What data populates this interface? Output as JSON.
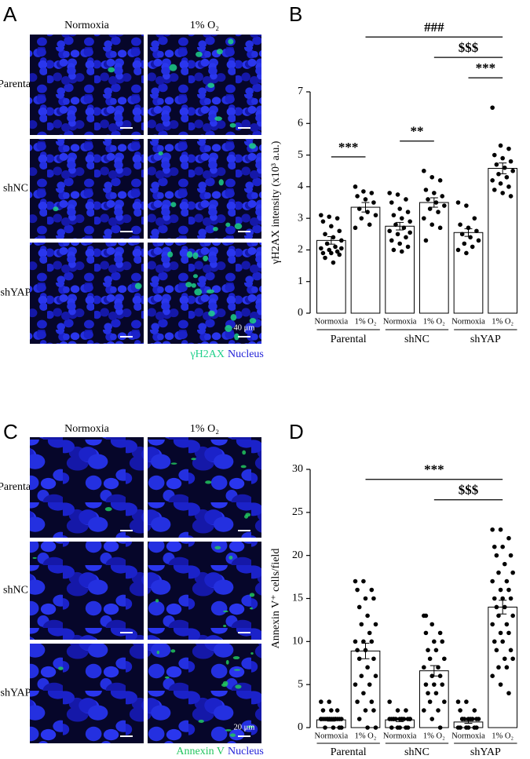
{
  "figure": {
    "panels": [
      {
        "label": "A",
        "columns": [
          "Normoxia",
          "1% O₂"
        ],
        "rows": [
          "Parental",
          "shNC",
          "shYAP"
        ],
        "scale_bar": "40 μm",
        "stain": {
          "text": "γH2AX",
          "color": "#1fd08a"
        },
        "counterstain": {
          "text": "Nucleus",
          "color": "#2323d8"
        }
      },
      {
        "label": "C",
        "columns": [
          "Normoxia",
          "1% O₂"
        ],
        "rows": [
          "Parental",
          "shNC",
          "shYAP"
        ],
        "scale_bar": "20 μm",
        "stain": {
          "text": "Annexin V",
          "color": "#22c55e"
        },
        "counterstain": {
          "text": "Nucleus",
          "color": "#2323d8"
        }
      }
    ]
  },
  "chart_data": [
    {
      "type": "bar",
      "panel_label": "B",
      "ylabel": "γH2AX intensity (x10³ a.u.)",
      "categories": [
        "Normoxia",
        "1% O₂",
        "Normoxia",
        "1% O₂",
        "Normoxia",
        "1% O₂"
      ],
      "group_labels": [
        "Parental",
        "shNC",
        "shYAP"
      ],
      "values": [
        2.3,
        3.35,
        2.75,
        3.5,
        2.55,
        4.58
      ],
      "errors": [
        0.12,
        0.15,
        0.12,
        0.15,
        0.12,
        0.17
      ],
      "points": [
        [
          3.1,
          3.05,
          3.0,
          2.9,
          2.75,
          2.6,
          2.5,
          2.4,
          2.3,
          2.2,
          2.1,
          2.05,
          2.0,
          1.95,
          1.9,
          1.9,
          1.85,
          1.75,
          1.6,
          2.05
        ],
        [
          4.0,
          3.85,
          3.8,
          3.7,
          3.6,
          3.5,
          3.3,
          3.2,
          3.1,
          3.0,
          2.8,
          2.7
        ],
        [
          3.8,
          3.75,
          3.6,
          3.5,
          3.3,
          3.2,
          3.1,
          3.0,
          2.9,
          2.8,
          2.7,
          2.6,
          2.5,
          2.4,
          2.3,
          2.2,
          2.1,
          2.0,
          1.95,
          2.55
        ],
        [
          4.5,
          4.3,
          4.2,
          3.9,
          3.8,
          3.7,
          3.6,
          3.5,
          3.4,
          3.3,
          3.2,
          3.0,
          2.8,
          2.7,
          2.3
        ],
        [
          3.5,
          3.4,
          3.0,
          2.8,
          2.7,
          2.6,
          2.5,
          2.4,
          2.3,
          2.2,
          2.1,
          2.0,
          1.9
        ],
        [
          6.5,
          5.3,
          5.2,
          5.0,
          4.9,
          4.8,
          4.7,
          4.6,
          4.5,
          4.4,
          4.3,
          4.2,
          4.1,
          4.0,
          3.9,
          3.8,
          3.7
        ]
      ],
      "color": "#ffffff",
      "point_color": "#000000",
      "ylim": [
        0,
        7
      ],
      "yticks": [
        0,
        1,
        2,
        3,
        4,
        5,
        6,
        7
      ],
      "annotations": [
        {
          "text": "***",
          "from": 0,
          "to": 1
        },
        {
          "text": "**",
          "from": 2,
          "to": 3
        },
        {
          "text": "***",
          "from": 4,
          "to": 5
        },
        {
          "text": "$$$",
          "from": 3,
          "to": 5
        },
        {
          "text": "###",
          "from": 1,
          "to": 5
        }
      ]
    },
    {
      "type": "bar",
      "panel_label": "D",
      "ylabel": "Annexin V⁺ cells/field",
      "categories": [
        "Normoxia",
        "1% O₂",
        "Normoxia",
        "1% O₂",
        "Normoxia",
        "1% O₂"
      ],
      "group_labels": [
        "Parental",
        "shNC",
        "shYAP"
      ],
      "values": [
        0.9,
        8.9,
        0.9,
        6.6,
        0.65,
        14.0
      ],
      "errors": [
        0.15,
        0.9,
        0.2,
        0.6,
        0.15,
        0.8
      ],
      "points": [
        [
          3,
          3,
          2,
          2,
          2,
          1,
          1,
          1,
          1,
          1,
          1,
          1,
          1,
          1,
          1,
          1,
          0,
          0,
          0,
          0,
          1,
          1,
          1,
          1
        ],
        [
          17,
          17,
          16,
          16,
          15,
          15,
          14,
          13,
          12,
          12,
          11,
          10,
          10,
          10,
          9,
          9,
          8,
          8,
          7,
          6,
          6,
          5,
          5,
          4,
          3,
          3,
          2,
          2,
          1,
          0,
          0
        ],
        [
          3,
          2,
          2,
          1,
          1,
          1,
          1,
          1,
          1,
          1,
          1,
          1,
          0,
          0,
          0,
          0,
          0,
          1,
          1,
          1
        ],
        [
          13,
          12,
          11,
          11,
          10,
          10,
          9,
          9,
          8,
          8,
          7,
          7,
          6,
          6,
          5,
          5,
          5,
          4,
          4,
          3,
          3,
          2,
          2,
          1,
          0,
          13
        ],
        [
          3,
          3,
          2,
          2,
          1,
          1,
          1,
          1,
          1,
          1,
          1,
          0,
          0,
          0,
          0,
          0,
          0,
          1
        ],
        [
          23,
          23,
          22,
          21,
          21,
          20,
          20,
          19,
          18,
          18,
          17,
          17,
          16,
          16,
          15,
          15,
          15,
          14,
          14,
          13,
          13,
          12,
          12,
          11,
          11,
          10,
          10,
          9,
          9,
          8,
          8,
          7,
          7,
          6,
          5,
          4
        ]
      ],
      "color": "#ffffff",
      "point_color": "#000000",
      "ylim": [
        0,
        30
      ],
      "yticks": [
        0,
        5,
        10,
        15,
        20,
        25,
        30
      ],
      "annotations": [
        {
          "text": "$$$",
          "from": 3,
          "to": 5
        },
        {
          "text": "***",
          "from": 1,
          "to": 5
        }
      ]
    }
  ]
}
